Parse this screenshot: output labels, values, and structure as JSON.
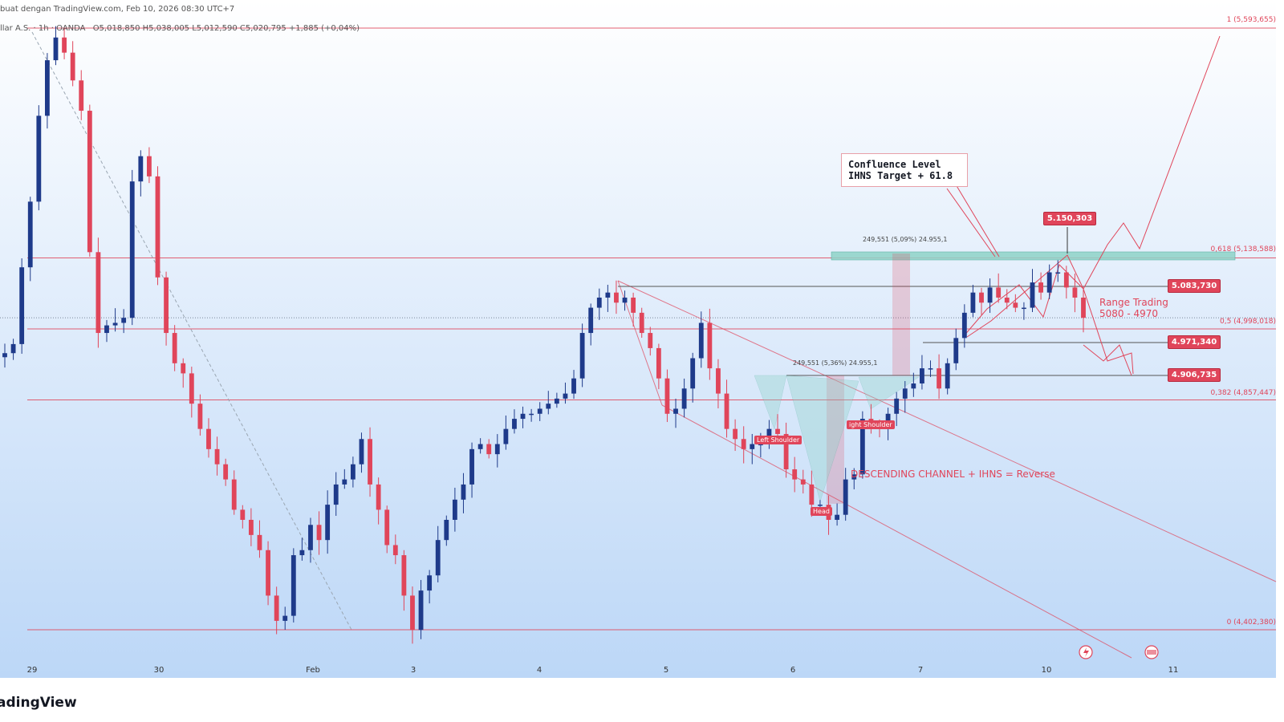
{
  "header": {
    "source_line": "buat dengan TradingView.com, Feb 10, 2026 08:30 UTC+7",
    "symbol_line": "llar A.S. · 1h · OANDA",
    "ohlc": "O5,018,850  H5,038,005  L5,012,590  C5,020,795  +1,885 (+0,04%)"
  },
  "brand": {
    "logo_text": "adingView"
  },
  "colors": {
    "bullish": "#1e3a8a",
    "bearish": "#e0455a",
    "fib_line": "#e0455a",
    "background_top": "#ffffff",
    "background_bottom": "#bcd7f7"
  },
  "chart_data": {
    "type": "candlestick",
    "x_ticks": [
      "29",
      "30",
      "Feb",
      "3",
      "4",
      "5",
      "6",
      "7",
      "10",
      "11"
    ],
    "candles_close_path": [
      4950,
      4968,
      5120,
      5250,
      5420,
      5530,
      5575,
      5545,
      5490,
      5430,
      5150,
      4990,
      5005,
      5010,
      5020,
      5290,
      5340,
      5300,
      5100,
      4990,
      4930,
      4910,
      4850,
      4800,
      4760,
      4730,
      4700,
      4640,
      4620,
      4590,
      4560,
      4470,
      4420,
      4430,
      4550,
      4560,
      4610,
      4580,
      4650,
      4690,
      4700,
      4730,
      4780,
      4690,
      4640,
      4570,
      4550,
      4470,
      4402,
      4480,
      4510,
      4580,
      4620,
      4660,
      4690,
      4760,
      4770,
      4750,
      4770,
      4800,
      4820,
      4830,
      4830,
      4840,
      4850,
      4860,
      4870,
      4900,
      4990,
      5040,
      5060,
      5070,
      5050,
      5060,
      5030,
      4990,
      4960,
      4900,
      4830,
      4840,
      4880,
      4940,
      5010,
      4920,
      4870,
      4800,
      4780,
      4760,
      4770,
      4770,
      4800,
      4790,
      4720,
      4700,
      4690,
      4650,
      4650,
      4620,
      4630,
      4700,
      4710,
      4820,
      4810,
      4800,
      4830,
      4860,
      4880,
      4890,
      4920,
      4920,
      4880,
      4930,
      4980,
      5030,
      5070,
      5050,
      5080,
      5060,
      5050,
      5040,
      5040,
      5090,
      5070,
      5110,
      5110,
      5080,
      5060,
      5020
    ],
    "fib_levels": [
      {
        "label": "1 (5,593,655)",
        "value": 5593.655
      },
      {
        "label": "0,618 (5,138,588)",
        "value": 5138.588
      },
      {
        "label": "0,5 (4,998,018)",
        "value": 4998.018
      },
      {
        "label": "0,382 (4,857,447)",
        "value": 4857.447
      },
      {
        "label": "0 (4,402,380)",
        "value": 4402.38
      }
    ],
    "price_tags": [
      {
        "label": "5.150,303",
        "value": 5150.303
      },
      {
        "label": "5.083,730",
        "value": 5083.73
      },
      {
        "label": "4.971,340",
        "value": 4971.34
      },
      {
        "label": "4.906,735",
        "value": 4906.735
      }
    ],
    "ihns_labels": {
      "left": "Left Shoulder",
      "head": "Head",
      "right": "ight Shoulder"
    },
    "measurements": [
      "249,551 (5,09%) 24.955,1",
      "249,551 (5,36%) 24.955,1"
    ],
    "annotations": {
      "confluence_line1": "Confluence Level",
      "confluence_line2": "IHNS Target + 61.8",
      "range_line1": "Range Trading",
      "range_line2": "5080 - 4970",
      "pattern_text": "DESCENDING CHANNEL + IHNS = Reverse"
    },
    "ylim": [
      4400,
      5600
    ]
  }
}
